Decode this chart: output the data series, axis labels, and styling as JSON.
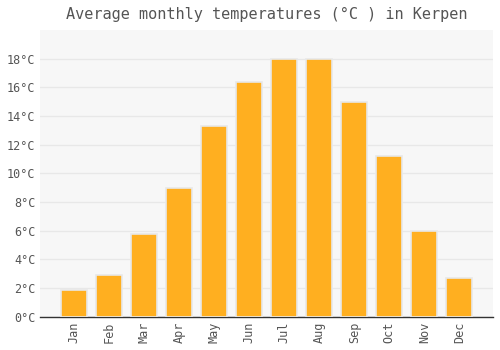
{
  "title": "Average monthly temperatures (°C ) in Kerpen",
  "months": [
    "Jan",
    "Feb",
    "Mar",
    "Apr",
    "May",
    "Jun",
    "Jul",
    "Aug",
    "Sep",
    "Oct",
    "Nov",
    "Dec"
  ],
  "values": [
    1.9,
    2.9,
    5.8,
    9.0,
    13.3,
    16.4,
    18.0,
    18.0,
    15.0,
    11.2,
    6.0,
    2.7
  ],
  "bar_color": "#FFAF20",
  "bar_edge_color": "#E8E8E8",
  "background_color": "#FFFFFF",
  "plot_bg_color": "#F7F7F7",
  "grid_color": "#E8E8E8",
  "text_color": "#555555",
  "ylim": [
    0,
    20
  ],
  "yticks": [
    0,
    2,
    4,
    6,
    8,
    10,
    12,
    14,
    16,
    18
  ],
  "title_fontsize": 11,
  "tick_fontsize": 8.5
}
